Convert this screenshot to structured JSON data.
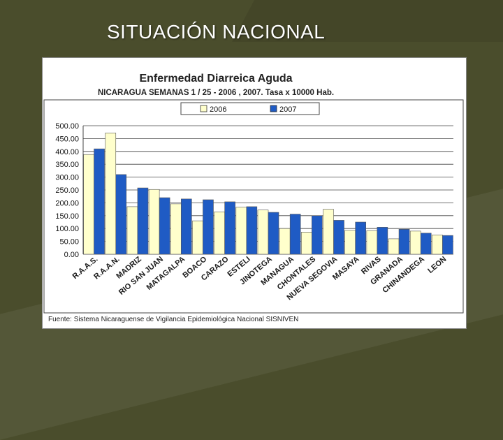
{
  "slide": {
    "title": "SITUACIÓN NACIONAL"
  },
  "chart_data": {
    "type": "bar",
    "title": "Enfermedad Diarreica Aguda",
    "subtitle": "NICARAGUA SEMANAS 1 / 25  -  2006 , 2007. Tasa x 10000 Hab.",
    "source": "Fuente: Sistema Nicaraguense de Vigilancia Epidemiológica Nacional SISNIVEN",
    "categories": [
      "R.A.A.S.",
      "R.A.A.N.",
      "MADRIZ",
      "RIO SAN JUAN",
      "MATAGALPA",
      "BOACO",
      "CARAZO",
      "ESTELI",
      "JINOTEGA",
      "MANAGUA",
      "CHONTALES",
      "NUEVA SEGOVIA",
      "MASAYA",
      "RIVAS",
      "GRANADA",
      "CHINANDEGA",
      "LEON"
    ],
    "series": [
      {
        "name": "2006",
        "color": "#ffffcc",
        "values": [
          388,
          472,
          185,
          252,
          196,
          130,
          165,
          183,
          172,
          100,
          86,
          175,
          93,
          92,
          60,
          90,
          75
        ]
      },
      {
        "name": "2007",
        "color": "#1f5bc4",
        "values": [
          410,
          310,
          258,
          220,
          215,
          212,
          204,
          185,
          163,
          156,
          150,
          132,
          125,
          105,
          97,
          82,
          73
        ]
      }
    ],
    "yticks": [
      "0.00",
      "50.00",
      "100.00",
      "150.00",
      "200.00",
      "250.00",
      "300.00",
      "350.00",
      "400.00",
      "450.00",
      "500.00"
    ],
    "ylim": [
      0,
      500
    ],
    "grid": true,
    "legend": "top-center"
  }
}
